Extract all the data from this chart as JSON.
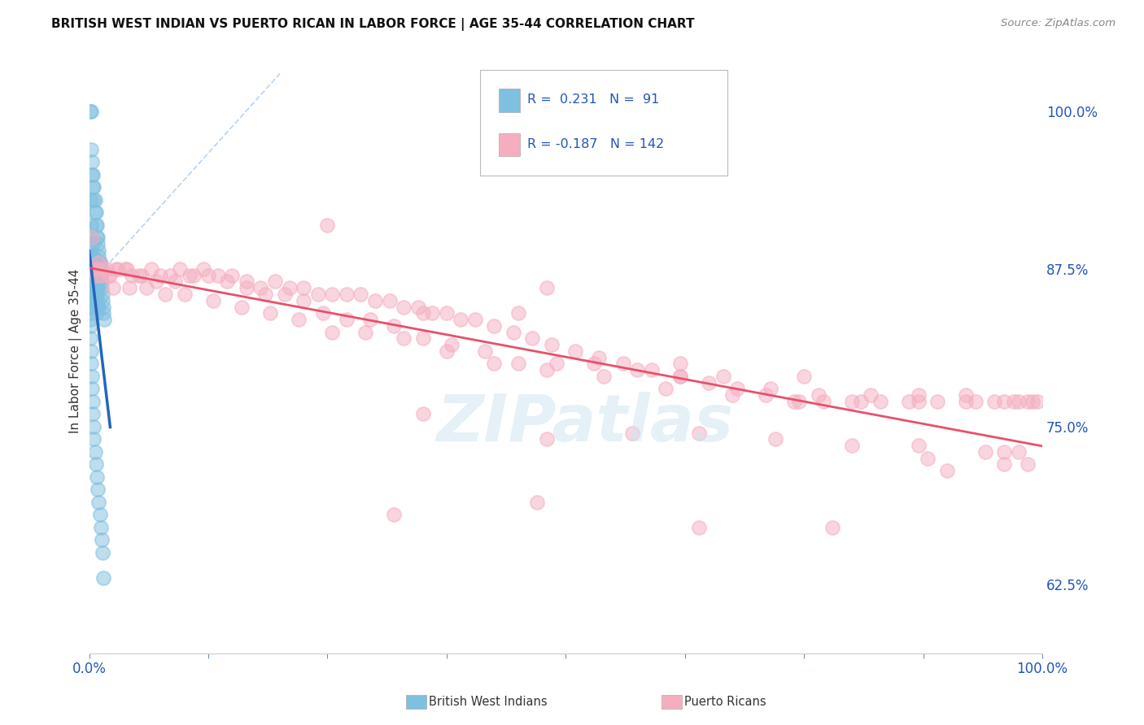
{
  "title": "BRITISH WEST INDIAN VS PUERTO RICAN IN LABOR FORCE | AGE 35-44 CORRELATION CHART",
  "source": "Source: ZipAtlas.com",
  "ylabel": "In Labor Force | Age 35-44",
  "xlim": [
    0.0,
    1.0
  ],
  "ylim": [
    0.57,
    1.05
  ],
  "blue_color": "#7fbfdf",
  "pink_color": "#f5aec0",
  "blue_line_color": "#2266bb",
  "pink_line_color": "#e8506a",
  "diag_color": "#aaccee",
  "watermark": "ZIPatlas",
  "background_color": "#ffffff",
  "grid_color": "#cccccc",
  "blue_scatter_x": [
    0.001,
    0.002,
    0.002,
    0.003,
    0.003,
    0.004,
    0.004,
    0.005,
    0.005,
    0.006,
    0.006,
    0.007,
    0.007,
    0.008,
    0.008,
    0.009,
    0.009,
    0.01,
    0.01,
    0.011,
    0.011,
    0.012,
    0.012,
    0.013,
    0.013,
    0.014,
    0.014,
    0.015,
    0.015,
    0.016,
    0.001,
    0.002,
    0.003,
    0.004,
    0.005,
    0.006,
    0.007,
    0.008,
    0.009,
    0.01,
    0.001,
    0.002,
    0.003,
    0.004,
    0.005,
    0.006,
    0.007,
    0.008,
    0.009,
    0.01,
    0.001,
    0.002,
    0.003,
    0.004,
    0.005,
    0.006,
    0.007,
    0.008,
    0.001,
    0.002,
    0.003,
    0.004,
    0.005,
    0.001,
    0.002,
    0.003,
    0.001,
    0.002,
    0.001,
    0.002,
    0.001,
    0.001,
    0.001,
    0.002,
    0.002,
    0.003,
    0.003,
    0.004,
    0.004,
    0.005,
    0.005,
    0.006,
    0.007,
    0.008,
    0.009,
    0.01,
    0.011,
    0.012,
    0.013,
    0.014,
    0.015
  ],
  "blue_scatter_y": [
    1.0,
    1.0,
    0.97,
    0.96,
    0.95,
    0.95,
    0.94,
    0.94,
    0.93,
    0.93,
    0.92,
    0.92,
    0.91,
    0.91,
    0.9,
    0.9,
    0.895,
    0.89,
    0.885,
    0.88,
    0.88,
    0.875,
    0.87,
    0.865,
    0.86,
    0.855,
    0.85,
    0.845,
    0.84,
    0.835,
    0.93,
    0.91,
    0.9,
    0.895,
    0.885,
    0.88,
    0.875,
    0.87,
    0.865,
    0.86,
    0.89,
    0.885,
    0.88,
    0.875,
    0.87,
    0.865,
    0.86,
    0.855,
    0.85,
    0.845,
    0.875,
    0.87,
    0.865,
    0.86,
    0.855,
    0.85,
    0.845,
    0.84,
    0.87,
    0.865,
    0.86,
    0.855,
    0.85,
    0.86,
    0.855,
    0.85,
    0.855,
    0.85,
    0.845,
    0.84,
    0.835,
    0.83,
    0.82,
    0.81,
    0.8,
    0.79,
    0.78,
    0.77,
    0.76,
    0.75,
    0.74,
    0.73,
    0.72,
    0.71,
    0.7,
    0.69,
    0.68,
    0.67,
    0.66,
    0.65,
    0.63
  ],
  "pink_scatter_x": [
    0.003,
    0.007,
    0.01,
    0.014,
    0.018,
    0.022,
    0.03,
    0.038,
    0.045,
    0.055,
    0.065,
    0.075,
    0.085,
    0.095,
    0.11,
    0.12,
    0.135,
    0.15,
    0.165,
    0.18,
    0.195,
    0.21,
    0.225,
    0.24,
    0.255,
    0.27,
    0.285,
    0.3,
    0.315,
    0.33,
    0.345,
    0.36,
    0.375,
    0.39,
    0.405,
    0.425,
    0.445,
    0.465,
    0.485,
    0.51,
    0.535,
    0.56,
    0.59,
    0.62,
    0.65,
    0.68,
    0.71,
    0.74,
    0.77,
    0.8,
    0.83,
    0.86,
    0.89,
    0.92,
    0.95,
    0.97,
    0.985,
    0.995,
    0.005,
    0.012,
    0.02,
    0.028,
    0.04,
    0.052,
    0.07,
    0.09,
    0.105,
    0.125,
    0.145,
    0.165,
    0.185,
    0.205,
    0.225,
    0.245,
    0.27,
    0.295,
    0.32,
    0.35,
    0.38,
    0.415,
    0.45,
    0.49,
    0.53,
    0.575,
    0.62,
    0.665,
    0.715,
    0.765,
    0.82,
    0.87,
    0.92,
    0.96,
    0.99,
    0.008,
    0.025,
    0.042,
    0.06,
    0.08,
    0.1,
    0.13,
    0.16,
    0.19,
    0.22,
    0.255,
    0.29,
    0.33,
    0.375,
    0.425,
    0.48,
    0.54,
    0.605,
    0.675,
    0.745,
    0.81,
    0.87,
    0.93,
    0.975,
    0.35,
    0.48,
    0.35,
    0.48,
    0.57,
    0.64,
    0.72,
    0.8,
    0.87,
    0.94,
    0.975,
    0.25,
    0.45,
    0.62,
    0.75,
    0.88,
    0.96,
    0.32,
    0.47,
    0.64,
    0.78,
    0.9,
    0.96,
    0.985
  ],
  "pink_scatter_y": [
    0.9,
    0.875,
    0.88,
    0.875,
    0.875,
    0.87,
    0.875,
    0.875,
    0.87,
    0.87,
    0.875,
    0.87,
    0.87,
    0.875,
    0.87,
    0.875,
    0.87,
    0.87,
    0.865,
    0.86,
    0.865,
    0.86,
    0.86,
    0.855,
    0.855,
    0.855,
    0.855,
    0.85,
    0.85,
    0.845,
    0.845,
    0.84,
    0.84,
    0.835,
    0.835,
    0.83,
    0.825,
    0.82,
    0.815,
    0.81,
    0.805,
    0.8,
    0.795,
    0.79,
    0.785,
    0.78,
    0.775,
    0.77,
    0.77,
    0.77,
    0.77,
    0.77,
    0.77,
    0.77,
    0.77,
    0.77,
    0.77,
    0.77,
    0.875,
    0.87,
    0.87,
    0.875,
    0.875,
    0.87,
    0.865,
    0.865,
    0.87,
    0.87,
    0.865,
    0.86,
    0.855,
    0.855,
    0.85,
    0.84,
    0.835,
    0.835,
    0.83,
    0.82,
    0.815,
    0.81,
    0.8,
    0.8,
    0.8,
    0.795,
    0.79,
    0.79,
    0.78,
    0.775,
    0.775,
    0.775,
    0.775,
    0.77,
    0.77,
    0.87,
    0.86,
    0.86,
    0.86,
    0.855,
    0.855,
    0.85,
    0.845,
    0.84,
    0.835,
    0.825,
    0.825,
    0.82,
    0.81,
    0.8,
    0.795,
    0.79,
    0.78,
    0.775,
    0.77,
    0.77,
    0.77,
    0.77,
    0.77,
    0.84,
    0.86,
    0.76,
    0.74,
    0.745,
    0.745,
    0.74,
    0.735,
    0.735,
    0.73,
    0.73,
    0.91,
    0.84,
    0.8,
    0.79,
    0.725,
    0.73,
    0.68,
    0.69,
    0.67,
    0.67,
    0.715,
    0.72,
    0.72
  ]
}
